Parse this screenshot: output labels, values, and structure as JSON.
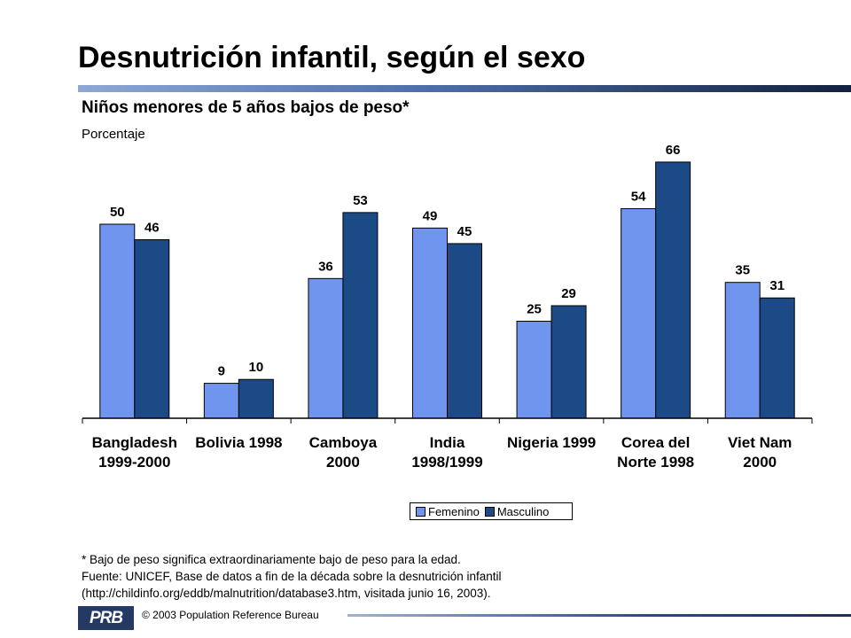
{
  "slide": {
    "title": "Desnutrición infantil, según el sexo",
    "subtitle": "Niños menores de 5 años bajos de peso*",
    "unit_label": "Porcentaje",
    "footnote_lines": [
      "* Bajo de peso significa extraordinariamente bajo de peso para la edad.",
      "Fuente: UNICEF, Base de datos a fin de la década sobre la desnutrición infantil",
      "(http://childinfo.org/eddb/malnutrition/database3.htm, visitada junio 16, 2003)."
    ],
    "logo_text": "PRB",
    "copyright": "© 2003 Population Reference Bureau"
  },
  "colors": {
    "femenino": "#6f95ee",
    "masculino": "#1b4a86"
  },
  "chart_data": {
    "type": "bar",
    "title": "Niños menores de 5 años bajos de peso*",
    "ylabel": "Porcentaje",
    "ylim": [
      0,
      70
    ],
    "grid": false,
    "legend_position": "bottom-right",
    "categories": [
      [
        "Bangladesh",
        "1999-2000"
      ],
      [
        "Bolivia 1998"
      ],
      [
        "Camboya",
        "2000"
      ],
      [
        "India",
        "1998/1999"
      ],
      [
        "Nigeria 1999"
      ],
      [
        "Corea del",
        "Norte 1998"
      ],
      [
        "Viet Nam",
        "2000"
      ]
    ],
    "series": [
      {
        "name": "Femenino",
        "values": [
          50,
          9,
          36,
          49,
          25,
          54,
          35
        ]
      },
      {
        "name": "Masculino",
        "values": [
          46,
          10,
          53,
          45,
          29,
          66,
          31
        ]
      }
    ]
  }
}
